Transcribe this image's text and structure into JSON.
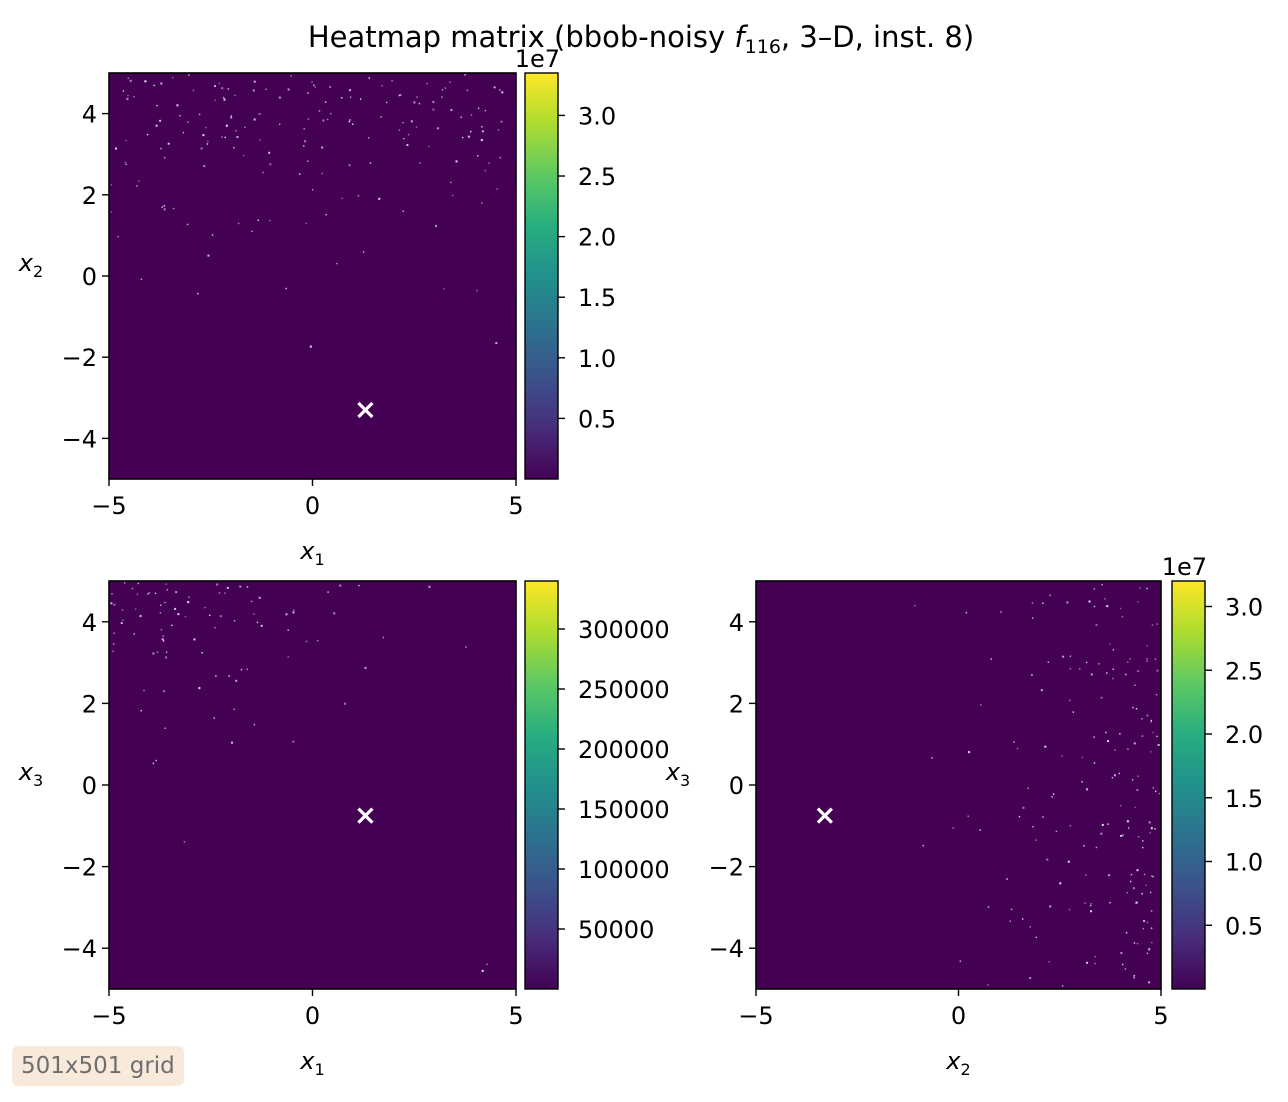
{
  "chart_data": {
    "type": "heatmap",
    "title": {
      "prefix": "Heatmap matrix (bbob-noisy ",
      "func_symbol": "f",
      "func_sub": "116",
      "suffix": ", 3–D, inst. 8)"
    },
    "grid_note": "501x501 grid",
    "panels": [
      {
        "id": "x1-x2",
        "xlabel": {
          "sym": "x",
          "sub": "1"
        },
        "ylabel": {
          "sym": "x",
          "sub": "2"
        },
        "xlim": [
          -5,
          5
        ],
        "ylim": [
          -5,
          5
        ],
        "xticks": [
          -5,
          0,
          5
        ],
        "yticks": [
          -4,
          -2,
          0,
          2,
          4
        ],
        "marker": {
          "x": 1.3,
          "y": -3.3
        },
        "noise": "top",
        "colorbar": {
          "offset_label": "1e7",
          "min": 0,
          "max": 3.35,
          "ticks": [
            0.5,
            1.0,
            1.5,
            2.0,
            2.5,
            3.0
          ],
          "tick_labels": [
            "0.5",
            "1.0",
            "1.5",
            "2.0",
            "2.5",
            "3.0"
          ]
        }
      },
      {
        "id": "x1-x3",
        "xlabel": {
          "sym": "x",
          "sub": "1"
        },
        "ylabel": {
          "sym": "x",
          "sub": "3"
        },
        "xlim": [
          -5,
          5
        ],
        "ylim": [
          -5,
          5
        ],
        "xticks": [
          -5,
          0,
          5
        ],
        "yticks": [
          -4,
          -2,
          0,
          2,
          4
        ],
        "marker": {
          "x": 1.3,
          "y": -0.75
        },
        "noise": "topleft",
        "colorbar": {
          "offset_label": "",
          "min": 0,
          "max": 340000,
          "ticks": [
            50000,
            100000,
            150000,
            200000,
            250000,
            300000
          ],
          "tick_labels": [
            "50000",
            "100000",
            "150000",
            "200000",
            "250000",
            "300000"
          ]
        }
      },
      {
        "id": "x2-x3",
        "xlabel": {
          "sym": "x",
          "sub": "2"
        },
        "ylabel": {
          "sym": "x",
          "sub": "3"
        },
        "xlim": [
          -5,
          5
        ],
        "ylim": [
          -5,
          5
        ],
        "xticks": [
          -5,
          0,
          5
        ],
        "yticks": [
          -4,
          -2,
          0,
          2,
          4
        ],
        "marker": {
          "x": -3.3,
          "y": -0.75
        },
        "noise": "right",
        "colorbar": {
          "offset_label": "1e7",
          "min": 0,
          "max": 3.2,
          "ticks": [
            0.5,
            1.0,
            1.5,
            2.0,
            2.5,
            3.0
          ],
          "tick_labels": [
            "0.5",
            "1.0",
            "1.5",
            "2.0",
            "2.5",
            "3.0"
          ]
        }
      }
    ],
    "colors": {
      "background": "#440154",
      "marker": "#ffffff",
      "speckle": "#e8e8f0"
    }
  }
}
